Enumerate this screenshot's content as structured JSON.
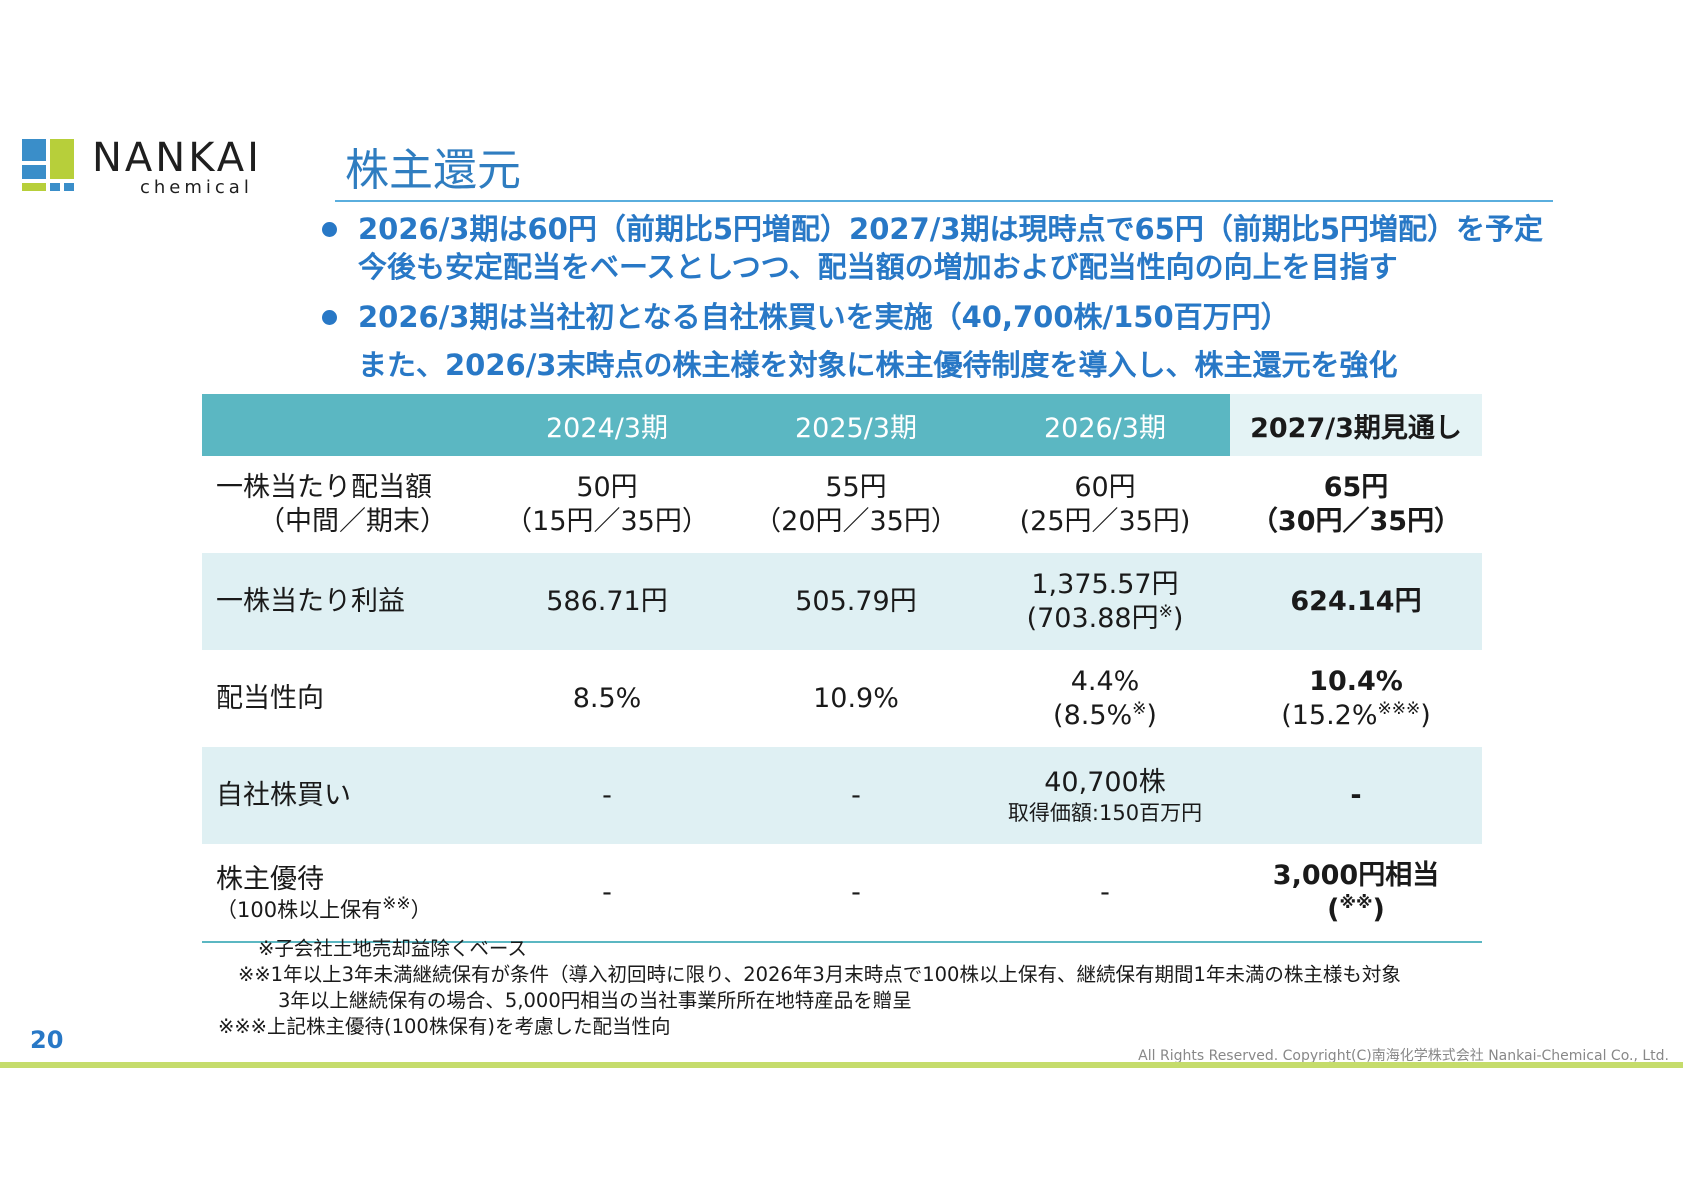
{
  "logo": {
    "name": "NANKAI",
    "sub": "chemical"
  },
  "title": "株主還元",
  "bullets": [
    {
      "lines": [
        "2026/3期は60円（前期比5円増配）2027/3期は現時点で65円（前期比5円増配）を予定",
        "今後も安定配当をベースとしつつ、配当額の増加および配当性向の向上を目指す"
      ]
    },
    {
      "lines": [
        "2026/3期は当社初となる自社株買いを実施（40,700株/150百万円）",
        "また、2026/3末時点の株主様を対象に株主優待制度を導入し、株主還元を強化"
      ]
    }
  ],
  "table": {
    "headers": [
      "",
      "2024/3期",
      "2025/3期",
      "2026/3期",
      "2027/3期見通し"
    ],
    "rows": {
      "dps": {
        "label1": "一株当たり配当額",
        "label2": "（中間／期末）",
        "c1a": "50円",
        "c1b": "（15円／35円）",
        "c2a": "55円",
        "c2b": "（20円／35円）",
        "c3a": "60円",
        "c3b": "(25円／35円)",
        "c4a": "65円",
        "c4b": "（30円／35円）"
      },
      "eps": {
        "label": "一株当たり利益",
        "c1": "586.71円",
        "c2": "505.79円",
        "c3a": "1,375.57円",
        "c3b": "(703.88円",
        "c3mark": "※",
        "c3c": ")",
        "c4": "624.14円"
      },
      "payout": {
        "label": "配当性向",
        "c1": "8.5%",
        "c2": "10.9%",
        "c3a": "4.4%",
        "c3b": "(8.5%",
        "c3mark": "※",
        "c3c": ")",
        "c4a": "10.4%",
        "c4b": "(15.2%",
        "c4mark": "※※※",
        "c4c": ")"
      },
      "buyback": {
        "label": "自社株買い",
        "c1": "-",
        "c2": "-",
        "c3a": "40,700株",
        "c3b": "取得価額:150百万円",
        "c4": "-"
      },
      "benefit": {
        "label1": "株主優待",
        "label2": "（100株以上保有",
        "label2mark": "※※",
        "label2end": "）",
        "c1": "-",
        "c2": "-",
        "c3": "-",
        "c4a": "3,000円相当",
        "c4b": "(",
        "c4mark": "※※",
        "c4c": ")"
      }
    }
  },
  "notes": [
    "※子会社土地売却益除くベース",
    "※※1年以上3年未満継続保有が条件（導入初回時に限り、2026年3月末時点で100株以上保有、継続保有期間1年未満の株主様も対象",
    "3年以上継続保有の場合、5,000円相当の当社事業所所在地特産品を贈呈",
    "※※※上記株主優待(100株保有)を考慮した配当性向"
  ],
  "page_number": "20",
  "copyright": "All Rights Reserved. Copyright(C)南海化学株式会社 Nankai-Chemical Co., Ltd."
}
